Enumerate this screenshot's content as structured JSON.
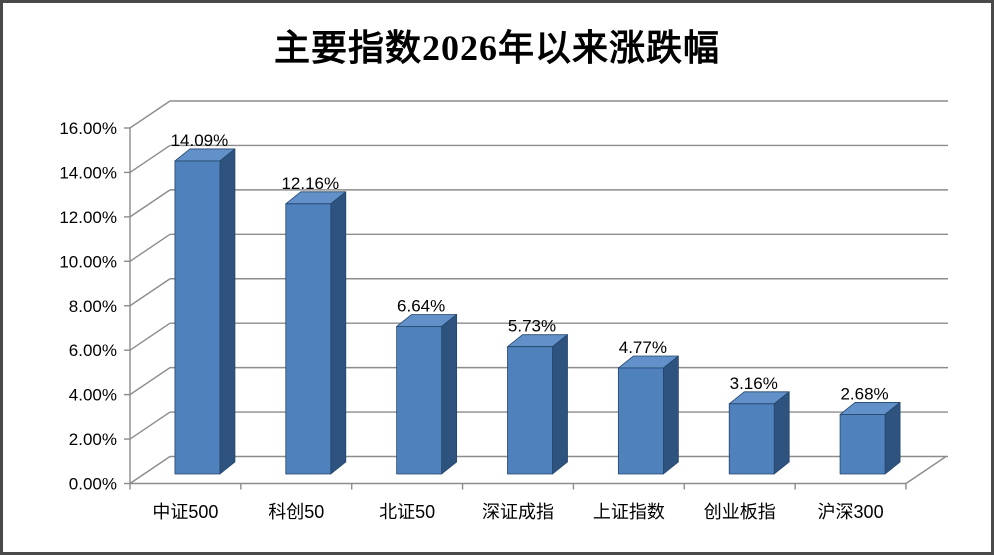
{
  "frame": {
    "background": "#ffffff",
    "border_color": "#4a4a4a"
  },
  "chart_data": {
    "type": "bar",
    "style_3d": true,
    "title": "主要指数2026年以来涨跌幅",
    "categories": [
      "中证500",
      "科创50",
      "北证50",
      "深证成指",
      "上证指数",
      "创业板指",
      "沪深300"
    ],
    "values": [
      14.09,
      12.16,
      6.64,
      5.73,
      4.77,
      3.16,
      2.68
    ],
    "data_labels": [
      "14.09%",
      "12.16%",
      "6.64%",
      "5.73%",
      "4.77%",
      "3.16%",
      "2.68%"
    ],
    "y_tick_labels": [
      "0.00%",
      "2.00%",
      "4.00%",
      "6.00%",
      "8.00%",
      "10.00%",
      "12.00%",
      "14.00%",
      "16.00%"
    ],
    "xlabel": "",
    "ylabel": "",
    "ylim": [
      0,
      16
    ],
    "y_step": 2,
    "grid": true,
    "legend": "none",
    "colors": {
      "bar_front": "#4F81BD",
      "bar_top": "#6191C8",
      "bar_side": "#2E537F",
      "bar_outline": "#24466B",
      "axis_line": "#8C8C8C",
      "text": "#000000"
    }
  }
}
